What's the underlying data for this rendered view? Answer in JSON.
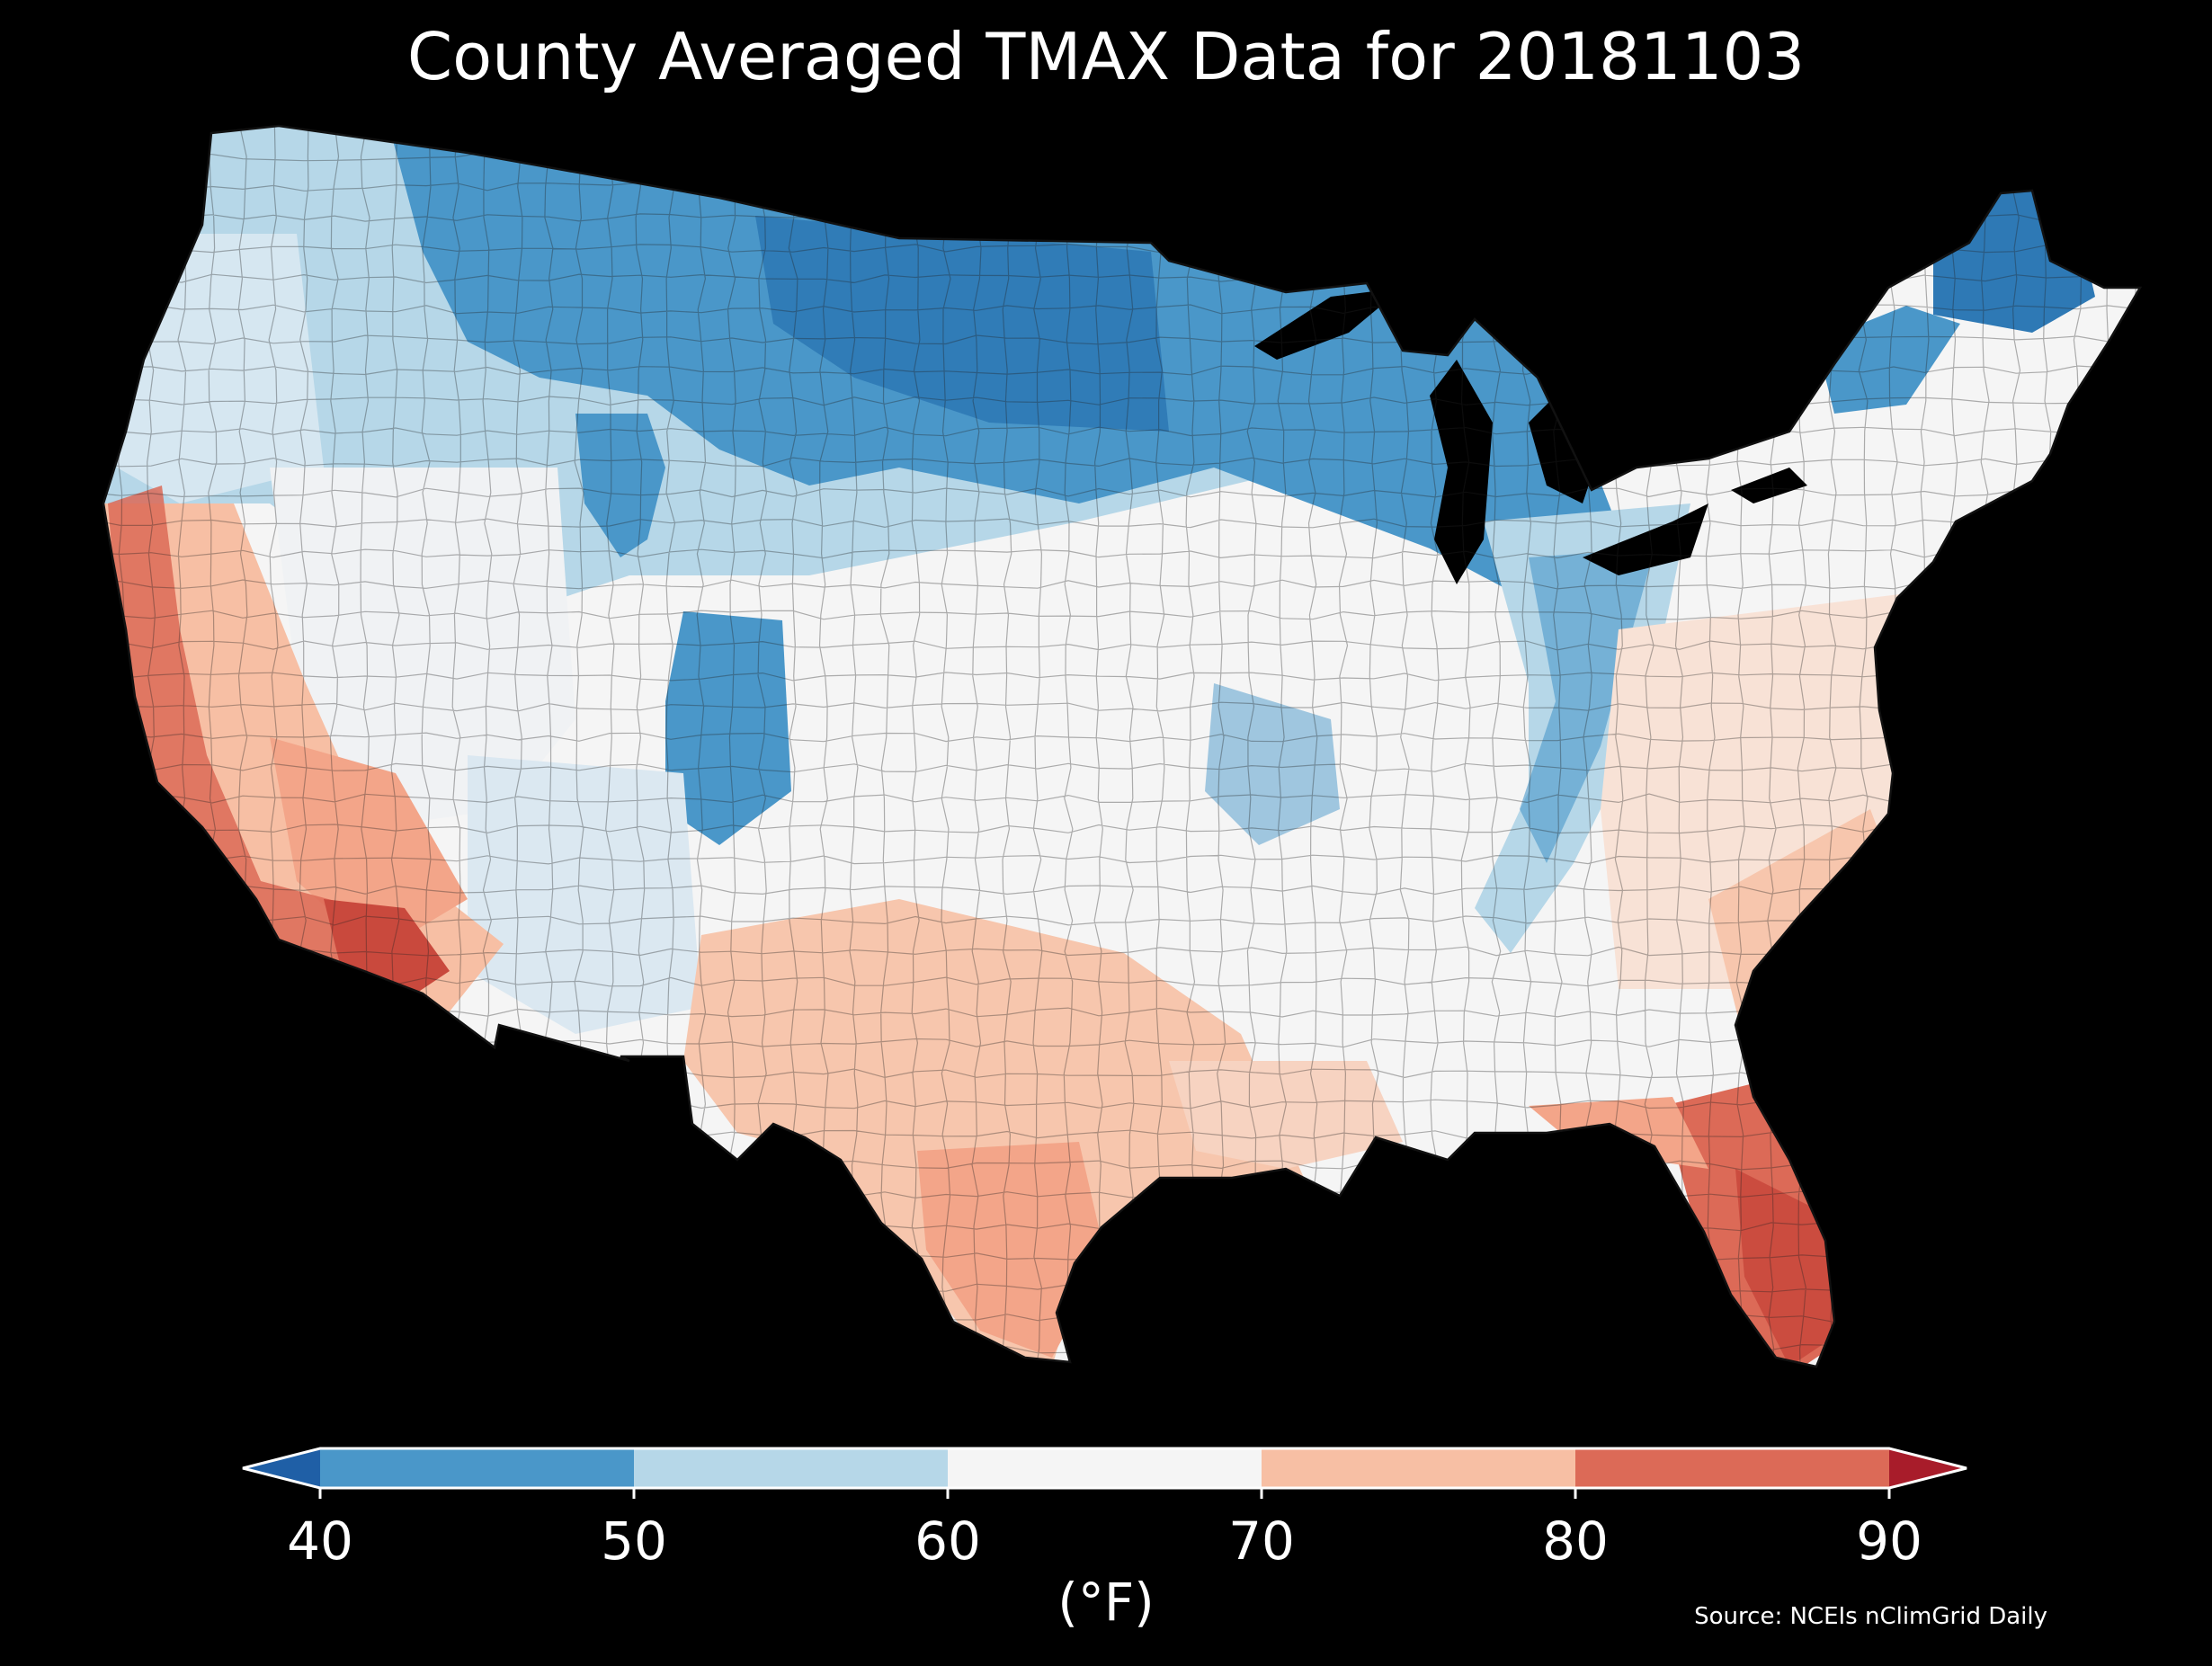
{
  "title": "County Averaged TMAX Data for 20181103",
  "colorbar": {
    "ticks": [
      "40",
      "50",
      "60",
      "70",
      "80",
      "90"
    ],
    "label": "(°F)",
    "bins": [
      {
        "range": "<40",
        "color": "#1f5fa6"
      },
      {
        "range": "40-50",
        "color": "#4a97c9"
      },
      {
        "range": "50-60",
        "color": "#b6d7e8"
      },
      {
        "range": "60-70",
        "color": "#f5f5f5"
      },
      {
        "range": "70-80",
        "color": "#f7bfa4"
      },
      {
        "range": "80-90",
        "color": "#dc6a57"
      },
      {
        "range": ">90",
        "color": "#a81c2a"
      }
    ]
  },
  "source": "Source: NCEIs nClimGrid Daily",
  "map": {
    "region": "Contiguous United States",
    "variable": "TMAX",
    "regional_pattern": [
      {
        "region": "Northern Plains / Upper Midwest",
        "bin": "40-50"
      },
      {
        "region": "Northern Rockies / Wyoming",
        "bin": "40-50"
      },
      {
        "region": "Pacific Northwest",
        "bin": "50-60"
      },
      {
        "region": "Great Basin / Colorado Plateau",
        "bin": "60-70"
      },
      {
        "region": "California / Desert Southwest",
        "bin": "70-80"
      },
      {
        "region": "Southern California / SW Arizona",
        "bin": "80-90"
      },
      {
        "region": "Texas / Gulf Coast",
        "bin": "70-80"
      },
      {
        "region": "Ohio Valley / Appalachians",
        "bin": "50-60"
      },
      {
        "region": "Southeast / Mid-Atlantic",
        "bin": "60-70"
      },
      {
        "region": "Florida peninsula",
        "bin": "80-90"
      },
      {
        "region": "Maine / Northern New England",
        "bin": "40-50"
      }
    ]
  }
}
